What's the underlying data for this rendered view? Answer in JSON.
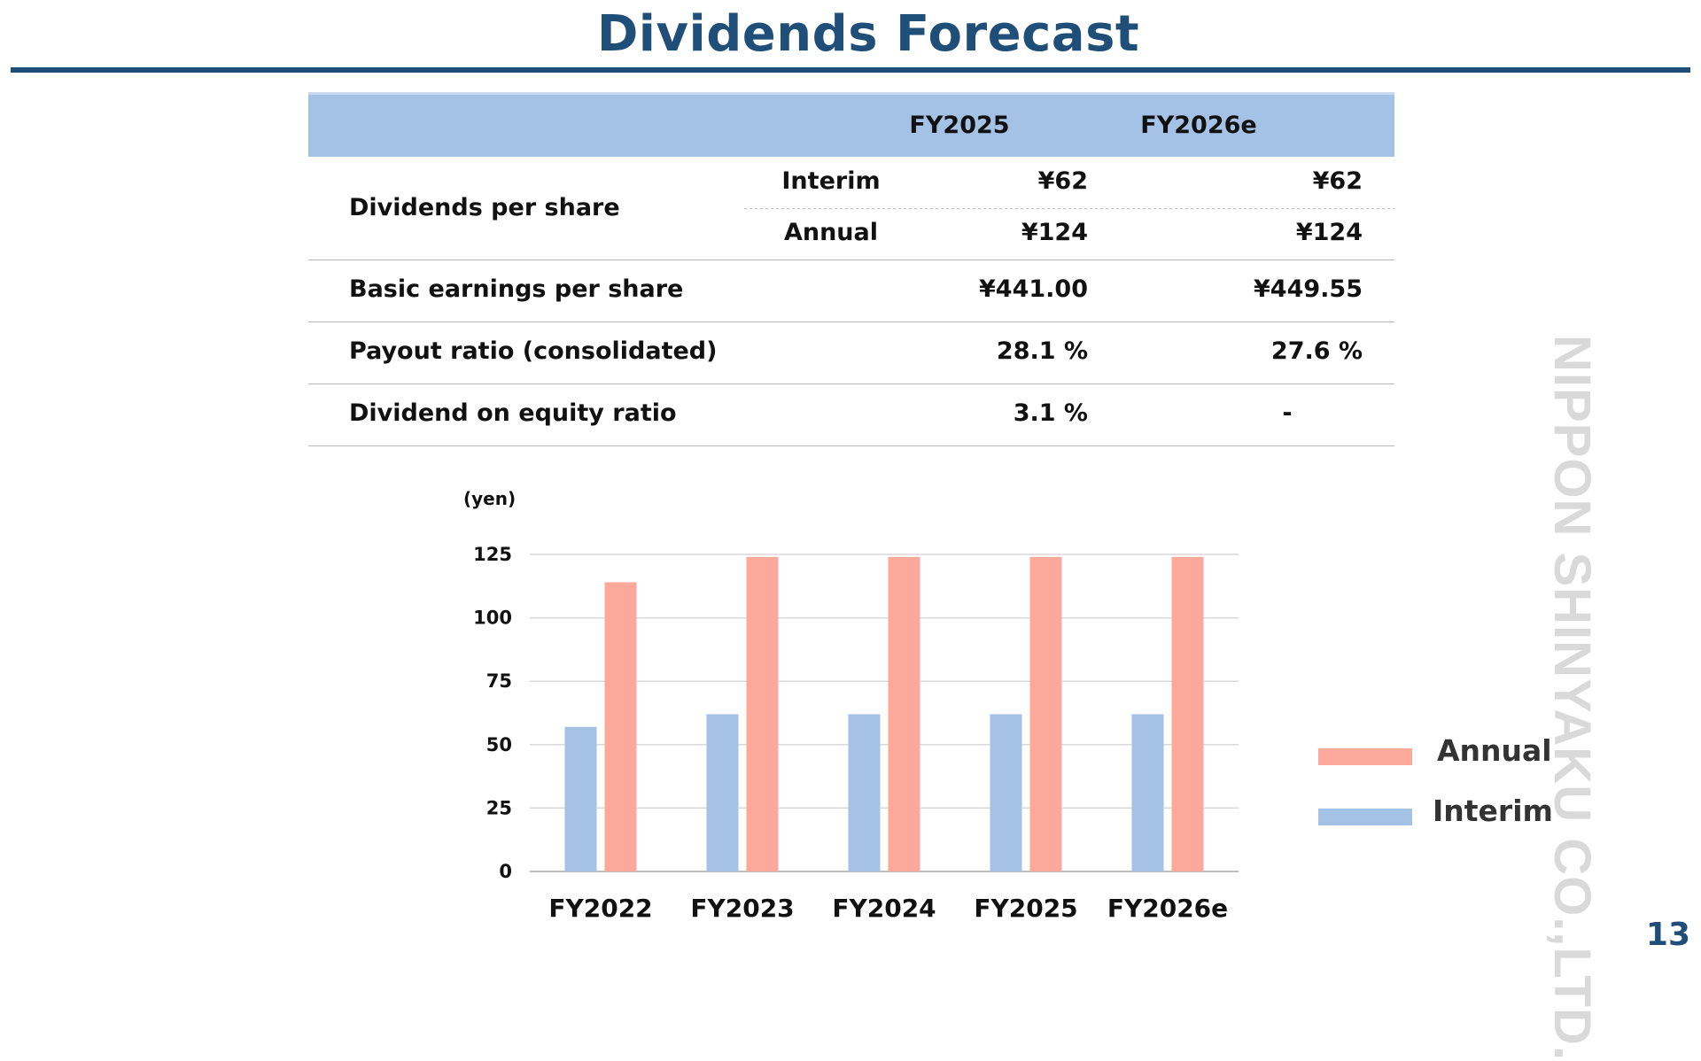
{
  "title": "Dividends Forecast",
  "table": {
    "columns": [
      "FY2025",
      "FY2026e"
    ],
    "dividends_label": "Dividends per share",
    "interim_label": "Interim",
    "annual_label": "Annual",
    "interim": [
      "¥62",
      "¥62"
    ],
    "annual": [
      "¥124",
      "¥124"
    ],
    "eps_label": "Basic earnings per share",
    "eps": [
      "¥441.00",
      "¥449.55"
    ],
    "payout_label": "Payout ratio (consolidated)",
    "payout": [
      "28.1 %",
      "27.6 %"
    ],
    "doe_label": "Dividend on equity ratio",
    "doe": [
      "3.1 %",
      "-"
    ]
  },
  "chart_data": {
    "type": "bar",
    "ylabel": "(yen)",
    "categories": [
      "FY2022",
      "FY2023",
      "FY2024",
      "FY2025",
      "FY2026e"
    ],
    "ylim": [
      0,
      125
    ],
    "yticks": [
      0,
      25,
      50,
      75,
      100,
      125
    ],
    "grid": true,
    "legend": "right",
    "series": [
      {
        "name": "Interim",
        "values": [
          57,
          62,
          62,
          62,
          62
        ],
        "color": "#a4c2e6"
      },
      {
        "name": "Annual",
        "values": [
          114,
          124,
          124,
          124,
          124
        ],
        "color": "#fca89b"
      }
    ]
  },
  "legend": {
    "annual": "Annual",
    "interim": "Interim"
  },
  "brand": "NIPPON SHINYAKU CO.,LTD.",
  "page_number": "13",
  "colors": {
    "title": "#1f4e79",
    "header_bg": "#a4c2e6",
    "interim": "#a4c2e6",
    "annual": "#fca89b"
  }
}
